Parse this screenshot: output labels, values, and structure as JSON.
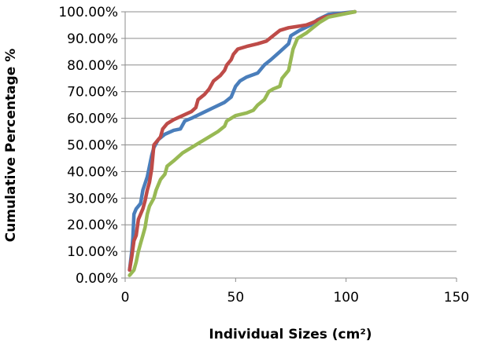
{
  "chart_data": {
    "type": "line",
    "xlabel": "Individual Sizes (cm²)",
    "ylabel": "Cumulative Percentage %",
    "xlim": [
      0,
      150
    ],
    "ylim": [
      0,
      100
    ],
    "xticks": [
      0,
      50,
      100,
      150
    ],
    "xtick_labels": [
      "0",
      "50",
      "100",
      "150"
    ],
    "yticks": [
      0,
      10,
      20,
      30,
      40,
      50,
      60,
      70,
      80,
      90,
      100
    ],
    "ytick_labels": [
      "0.00%",
      "10.00%",
      "20.00%",
      "30.00%",
      "40.00%",
      "50.00%",
      "60.00%",
      "70.00%",
      "80.00%",
      "90.00%",
      "100.00%"
    ],
    "grid": "horizontal",
    "legend": "none",
    "series": [
      {
        "color": "#4a7ebb",
        "points": [
          [
            2,
            3
          ],
          [
            3,
            10
          ],
          [
            3.5,
            15
          ],
          [
            4,
            24
          ],
          [
            5,
            26
          ],
          [
            7,
            28
          ],
          [
            8,
            33
          ],
          [
            10,
            38
          ],
          [
            12,
            46
          ],
          [
            13,
            49
          ],
          [
            15,
            52
          ],
          [
            18,
            54
          ],
          [
            22,
            55.5
          ],
          [
            25,
            56
          ],
          [
            27,
            59
          ],
          [
            30,
            60
          ],
          [
            35,
            62
          ],
          [
            40,
            64
          ],
          [
            45,
            66
          ],
          [
            48,
            68
          ],
          [
            50,
            72
          ],
          [
            52,
            74
          ],
          [
            55,
            75.5
          ],
          [
            60,
            77
          ],
          [
            63,
            80
          ],
          [
            66,
            82
          ],
          [
            70,
            85
          ],
          [
            74,
            88
          ],
          [
            75,
            91
          ],
          [
            79,
            93
          ],
          [
            84,
            95
          ],
          [
            87,
            97
          ],
          [
            92,
            99
          ],
          [
            104,
            100
          ]
        ]
      },
      {
        "color": "#be4b48",
        "points": [
          [
            2,
            3
          ],
          [
            3,
            8
          ],
          [
            4,
            14
          ],
          [
            5,
            16
          ],
          [
            6,
            22
          ],
          [
            8,
            26
          ],
          [
            9,
            29
          ],
          [
            10,
            33
          ],
          [
            11,
            36
          ],
          [
            12,
            41
          ],
          [
            13,
            50
          ],
          [
            16,
            53
          ],
          [
            17,
            56
          ],
          [
            19,
            58
          ],
          [
            22,
            59.5
          ],
          [
            26,
            61
          ],
          [
            30,
            62.5
          ],
          [
            32,
            64
          ],
          [
            33,
            67
          ],
          [
            36,
            69
          ],
          [
            38,
            71
          ],
          [
            40,
            74
          ],
          [
            43,
            76
          ],
          [
            45,
            78
          ],
          [
            46,
            80
          ],
          [
            48,
            82
          ],
          [
            49,
            84
          ],
          [
            51,
            86
          ],
          [
            55,
            87
          ],
          [
            60,
            88
          ],
          [
            64,
            89
          ],
          [
            67,
            91
          ],
          [
            70,
            93
          ],
          [
            74,
            94
          ],
          [
            78,
            94.5
          ],
          [
            82,
            95
          ],
          [
            85,
            96
          ],
          [
            90,
            98
          ],
          [
            104,
            100
          ]
        ]
      },
      {
        "color": "#98b954",
        "points": [
          [
            2,
            1
          ],
          [
            4,
            3
          ],
          [
            5,
            6
          ],
          [
            6,
            10
          ],
          [
            7,
            13
          ],
          [
            8,
            16
          ],
          [
            9,
            19
          ],
          [
            10,
            24
          ],
          [
            11,
            27
          ],
          [
            13,
            30
          ],
          [
            14,
            33
          ],
          [
            15,
            35
          ],
          [
            16,
            37
          ],
          [
            18,
            39
          ],
          [
            19,
            42
          ],
          [
            22,
            44
          ],
          [
            26,
            47
          ],
          [
            30,
            49
          ],
          [
            34,
            51
          ],
          [
            38,
            53
          ],
          [
            42,
            55
          ],
          [
            45,
            57
          ],
          [
            46,
            59
          ],
          [
            50,
            61
          ],
          [
            55,
            62
          ],
          [
            58,
            63
          ],
          [
            60,
            65
          ],
          [
            63,
            67
          ],
          [
            65,
            70
          ],
          [
            67,
            71
          ],
          [
            70,
            72
          ],
          [
            71,
            75
          ],
          [
            74,
            78
          ],
          [
            75,
            82
          ],
          [
            76,
            86
          ],
          [
            78,
            90
          ],
          [
            82,
            92
          ],
          [
            85,
            94
          ],
          [
            88,
            96
          ],
          [
            92,
            98
          ],
          [
            104,
            100
          ]
        ]
      }
    ]
  }
}
